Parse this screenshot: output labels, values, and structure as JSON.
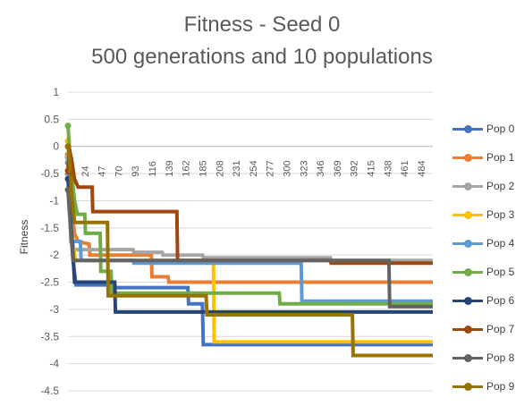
{
  "chart_data": {
    "type": "line",
    "title_line1": "Fitness - Seed 0",
    "title_line2": "500 generations and 10 populations",
    "xlabel": "",
    "ylabel": "Fitness",
    "ylim": [
      -4.5,
      1
    ],
    "yticks": [
      "1",
      "0.5",
      "0",
      "-0.5",
      "-1",
      "-1.5",
      "-2",
      "-2.5",
      "-3",
      "-3.5",
      "-4",
      "-4.5"
    ],
    "xlim": [
      1,
      500
    ],
    "xticks": [
      "1",
      "24",
      "47",
      "70",
      "93",
      "116",
      "139",
      "162",
      "185",
      "208",
      "231",
      "254",
      "277",
      "300",
      "323",
      "346",
      "369",
      "392",
      "415",
      "438",
      "461",
      "484"
    ],
    "grid": "horizontal",
    "legend_position": "right",
    "series": [
      {
        "name": "Pop 0",
        "color": "#4472C4",
        "points": [
          [
            1,
            -0.2
          ],
          [
            3,
            -0.9
          ],
          [
            5,
            -1.4
          ],
          [
            8,
            -2.1
          ],
          [
            12,
            -2.55
          ],
          [
            60,
            -2.55
          ],
          [
            65,
            -2.6
          ],
          [
            120,
            -2.6
          ],
          [
            165,
            -2.6
          ],
          [
            166,
            -2.9
          ],
          [
            185,
            -2.9
          ],
          [
            186,
            -3.65
          ],
          [
            500,
            -3.65
          ]
        ]
      },
      {
        "name": "Pop 1",
        "color": "#ED7D31",
        "points": [
          [
            1,
            -0.15
          ],
          [
            3,
            -0.6
          ],
          [
            6,
            -1.2
          ],
          [
            10,
            -1.6
          ],
          [
            15,
            -1.75
          ],
          [
            30,
            -1.8
          ],
          [
            31,
            -2.0
          ],
          [
            115,
            -2.0
          ],
          [
            116,
            -2.4
          ],
          [
            138,
            -2.4
          ],
          [
            139,
            -2.5
          ],
          [
            500,
            -2.5
          ]
        ]
      },
      {
        "name": "Pop 2",
        "color": "#A5A5A5",
        "points": [
          [
            1,
            -0.2
          ],
          [
            3,
            -0.5
          ],
          [
            5,
            -1.1
          ],
          [
            8,
            -1.9
          ],
          [
            60,
            -1.9
          ],
          [
            90,
            -1.9
          ],
          [
            91,
            -1.95
          ],
          [
            130,
            -1.95
          ],
          [
            131,
            -2.0
          ],
          [
            185,
            -2.0
          ],
          [
            186,
            -2.05
          ],
          [
            360,
            -2.05
          ],
          [
            361,
            -2.1
          ],
          [
            500,
            -2.1
          ]
        ]
      },
      {
        "name": "Pop 3",
        "color": "#FFC000",
        "points": [
          [
            1,
            0.1
          ],
          [
            3,
            -0.4
          ],
          [
            6,
            -1.6
          ],
          [
            10,
            -2.0
          ],
          [
            12,
            -2.1
          ],
          [
            200,
            -2.1
          ],
          [
            201,
            -3.6
          ],
          [
            500,
            -3.6
          ]
        ]
      },
      {
        "name": "Pop 4",
        "color": "#5B9BD5",
        "points": [
          [
            1,
            -0.3
          ],
          [
            3,
            -0.8
          ],
          [
            5,
            -1.75
          ],
          [
            18,
            -1.75
          ],
          [
            19,
            -2.1
          ],
          [
            90,
            -2.1
          ],
          [
            91,
            -2.15
          ],
          [
            320,
            -2.15
          ],
          [
            321,
            -2.85
          ],
          [
            500,
            -2.85
          ]
        ]
      },
      {
        "name": "Pop 5",
        "color": "#70AD47",
        "points": [
          [
            1,
            0.38
          ],
          [
            3,
            0.0
          ],
          [
            6,
            -0.5
          ],
          [
            10,
            -1.0
          ],
          [
            14,
            -1.25
          ],
          [
            24,
            -1.25
          ],
          [
            25,
            -1.6
          ],
          [
            45,
            -1.6
          ],
          [
            46,
            -2.3
          ],
          [
            60,
            -2.3
          ],
          [
            61,
            -2.7
          ],
          [
            290,
            -2.7
          ],
          [
            291,
            -2.9
          ],
          [
            500,
            -2.9
          ]
        ]
      },
      {
        "name": "Pop 6",
        "color": "#264478",
        "points": [
          [
            1,
            -0.6
          ],
          [
            3,
            -1.0
          ],
          [
            5,
            -1.4
          ],
          [
            8,
            -2.0
          ],
          [
            10,
            -2.5
          ],
          [
            65,
            -2.5
          ],
          [
            66,
            -3.05
          ],
          [
            500,
            -3.05
          ]
        ]
      },
      {
        "name": "Pop 7",
        "color": "#9E480E",
        "points": [
          [
            1,
            -0.45
          ],
          [
            3,
            -0.05
          ],
          [
            6,
            -0.25
          ],
          [
            10,
            -0.6
          ],
          [
            15,
            -0.75
          ],
          [
            34,
            -0.75
          ],
          [
            35,
            -1.2
          ],
          [
            150,
            -1.2
          ],
          [
            151,
            -2.1
          ],
          [
            360,
            -2.1
          ],
          [
            361,
            -2.15
          ],
          [
            500,
            -2.15
          ]
        ]
      },
      {
        "name": "Pop 8",
        "color": "#636363",
        "points": [
          [
            1,
            -0.8
          ],
          [
            3,
            -1.2
          ],
          [
            5,
            -1.6
          ],
          [
            8,
            -2.1
          ],
          [
            440,
            -2.1
          ],
          [
            441,
            -2.95
          ],
          [
            500,
            -2.95
          ]
        ]
      },
      {
        "name": "Pop 9",
        "color": "#997300",
        "points": [
          [
            1,
            0.0
          ],
          [
            3,
            -0.2
          ],
          [
            6,
            -0.9
          ],
          [
            10,
            -1.4
          ],
          [
            55,
            -1.4
          ],
          [
            56,
            -2.75
          ],
          [
            190,
            -2.75
          ],
          [
            191,
            -3.1
          ],
          [
            390,
            -3.1
          ],
          [
            391,
            -3.85
          ],
          [
            500,
            -3.85
          ]
        ]
      }
    ]
  }
}
